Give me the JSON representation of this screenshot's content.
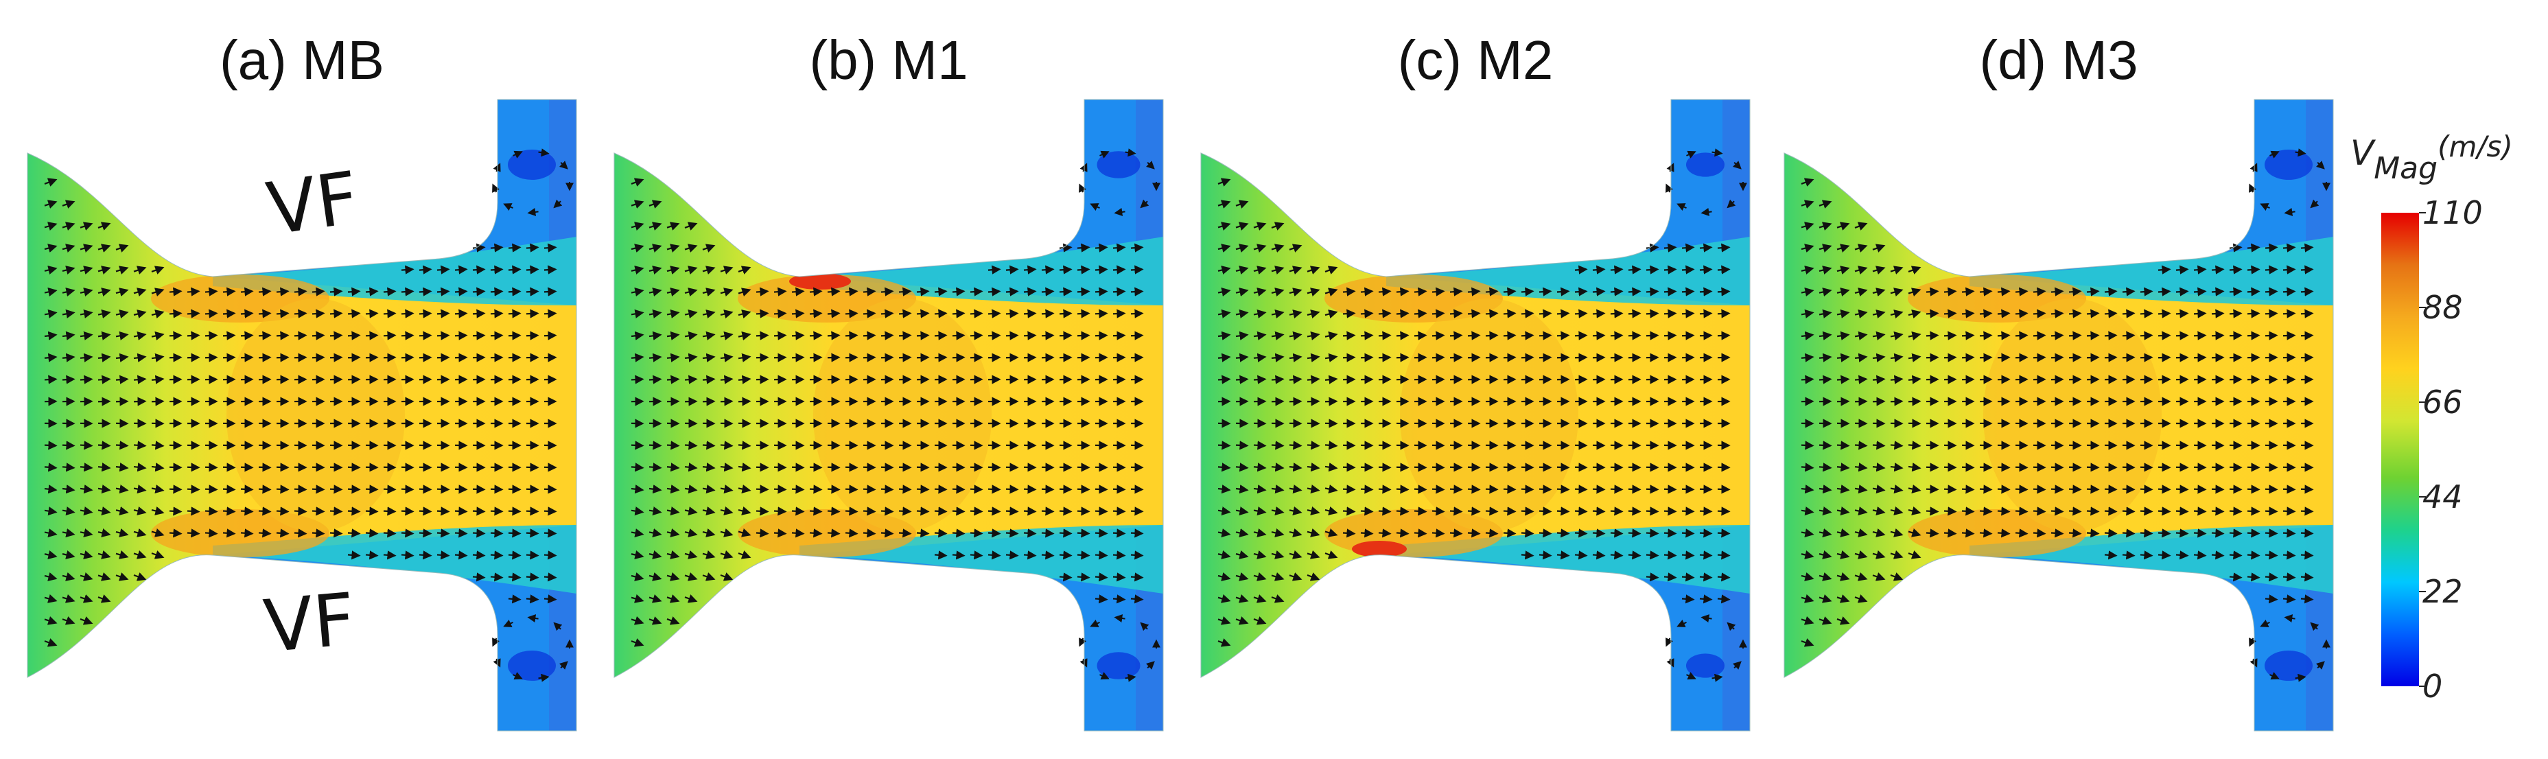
{
  "panels": [
    {
      "id": "a",
      "title": "(a) MB",
      "vortex_strength": 1.0,
      "hotspots": []
    },
    {
      "id": "b",
      "title": "(b) M1",
      "vortex_strength": 0.9,
      "hotspots": [
        "top"
      ]
    },
    {
      "id": "c",
      "title": "(c) M2",
      "vortex_strength": 0.8,
      "hotspots": [
        "bottom"
      ]
    },
    {
      "id": "d",
      "title": "(d) M3",
      "vortex_strength": 1.0,
      "hotspots": []
    }
  ],
  "annotations": {
    "top_label": "VF",
    "bottom_label": "VF"
  },
  "colorbar": {
    "title": "V",
    "subscript": "Mag",
    "unit": "(m/s)",
    "ticks": [
      "110",
      "88",
      "66",
      "44",
      "22",
      "0"
    ],
    "min": 0,
    "max": 110,
    "stops": [
      "#0000e6",
      "#0060ff",
      "#00c8ff",
      "#1ed28c",
      "#6ed232",
      "#d2e632",
      "#ffd21e",
      "#f5aa1e",
      "#e67314",
      "#e60000"
    ]
  }
}
